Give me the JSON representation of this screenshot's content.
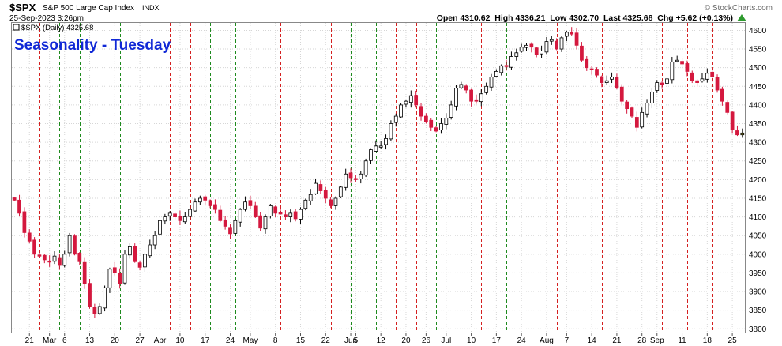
{
  "header": {
    "symbol": "$SPX",
    "name": "S&P 500 Large Cap Index",
    "exchange": "INDX",
    "datetime": "25-Sep-2023 3:26pm",
    "quote": "Open 4310.62  High 4336.21  Low 4302.70  Last 4325.68  Chg +5.62 (+0.13%)",
    "quote_arrow_color": "#2e9a2e",
    "watermark": "© StockCharts.com"
  },
  "legend": {
    "text": "$SPX (Daily) 4325.68"
  },
  "annotation": {
    "text": "Seasonality - Tuesday",
    "color": "#1028d6"
  },
  "colors": {
    "up_candle": "#ffffff",
    "down_candle": "#d4183e",
    "black_candle": "#000000",
    "last_candle": "#f2e34a",
    "red_vline": "#d42020",
    "green_vline": "#1e8a1e",
    "grid": "#d6d6d6"
  },
  "chart_data": {
    "type": "candlestick",
    "title": "Seasonality - Tuesday",
    "ylim": [
      3790,
      4620
    ],
    "yticks": [
      3800,
      3850,
      3900,
      3950,
      4000,
      4050,
      4100,
      4150,
      4200,
      4250,
      4300,
      4350,
      4400,
      4450,
      4500,
      4550,
      4600
    ],
    "xtick_labels": [
      {
        "i": 3,
        "label": "21"
      },
      {
        "i": 7,
        "label": "Mar"
      },
      {
        "i": 10,
        "label": "6"
      },
      {
        "i": 15,
        "label": "13"
      },
      {
        "i": 20,
        "label": "20"
      },
      {
        "i": 25,
        "label": "27"
      },
      {
        "i": 29,
        "label": "Apr"
      },
      {
        "i": 33,
        "label": "10"
      },
      {
        "i": 38,
        "label": "17"
      },
      {
        "i": 43,
        "label": "24"
      },
      {
        "i": 47,
        "label": "May"
      },
      {
        "i": 52,
        "label": "8"
      },
      {
        "i": 57,
        "label": "15"
      },
      {
        "i": 62,
        "label": "22"
      },
      {
        "i": 67,
        "label": "Jun"
      },
      {
        "i": 68,
        "label": "5"
      },
      {
        "i": 73,
        "label": "12"
      },
      {
        "i": 78,
        "label": "20"
      },
      {
        "i": 82,
        "label": "26"
      },
      {
        "i": 86,
        "label": "Jul"
      },
      {
        "i": 91,
        "label": "10"
      },
      {
        "i": 96,
        "label": "17"
      },
      {
        "i": 101,
        "label": "24"
      },
      {
        "i": 106,
        "label": "Aug"
      },
      {
        "i": 110,
        "label": "7"
      },
      {
        "i": 115,
        "label": "14"
      },
      {
        "i": 120,
        "label": "21"
      },
      {
        "i": 125,
        "label": "28"
      },
      {
        "i": 128,
        "label": "Sep"
      },
      {
        "i": 133,
        "label": "11"
      },
      {
        "i": 138,
        "label": "18"
      },
      {
        "i": 143,
        "label": "25"
      }
    ],
    "green_vlines": [
      9,
      13,
      21,
      26,
      39,
      44,
      67,
      72,
      84,
      98,
      112,
      124
    ],
    "red_vlines": [
      5,
      17,
      31,
      35,
      49,
      53,
      58,
      63,
      76,
      80,
      88,
      93,
      103,
      108,
      117,
      121,
      129,
      134,
      139
    ],
    "candles_close": [
      4145,
      4110,
      4058,
      4035,
      4000,
      3995,
      3985,
      3980,
      3995,
      3970,
      4000,
      4050,
      4000,
      3980,
      3920,
      3860,
      3840,
      3860,
      3910,
      3960,
      3950,
      3920,
      4000,
      4020,
      3980,
      3965,
      4000,
      4025,
      4050,
      4090,
      4100,
      4110,
      4100,
      4090,
      4100,
      4120,
      4140,
      4150,
      4145,
      4130,
      4120,
      4090,
      4075,
      4055,
      4090,
      4120,
      4140,
      4130,
      4100,
      4070,
      4100,
      4130,
      4110,
      4110,
      4100,
      4110,
      4095,
      4120,
      4145,
      4160,
      4190,
      4170,
      4150,
      4130,
      4150,
      4180,
      4215,
      4205,
      4200,
      4215,
      4250,
      4280,
      4290,
      4290,
      4310,
      4350,
      4370,
      4400,
      4410,
      4425,
      4400,
      4370,
      4355,
      4340,
      4330,
      4350,
      4365,
      4400,
      4445,
      4455,
      4440,
      4410,
      4410,
      4430,
      4450,
      4475,
      4490,
      4505,
      4505,
      4530,
      4540,
      4555,
      4560,
      4555,
      4535,
      4545,
      4570,
      4575,
      4550,
      4580,
      4595,
      4590,
      4560,
      4520,
      4500,
      4495,
      4480,
      4460,
      4465,
      4475,
      4445,
      4410,
      4390,
      4370,
      4340,
      4380,
      4405,
      4435,
      4460,
      4455,
      4470,
      4515,
      4520,
      4510,
      4490,
      4465,
      4460,
      4470,
      4485,
      4475,
      4440,
      4410,
      4380,
      4335,
      4320,
      4325
    ],
    "candles_color": "from_close_change"
  }
}
